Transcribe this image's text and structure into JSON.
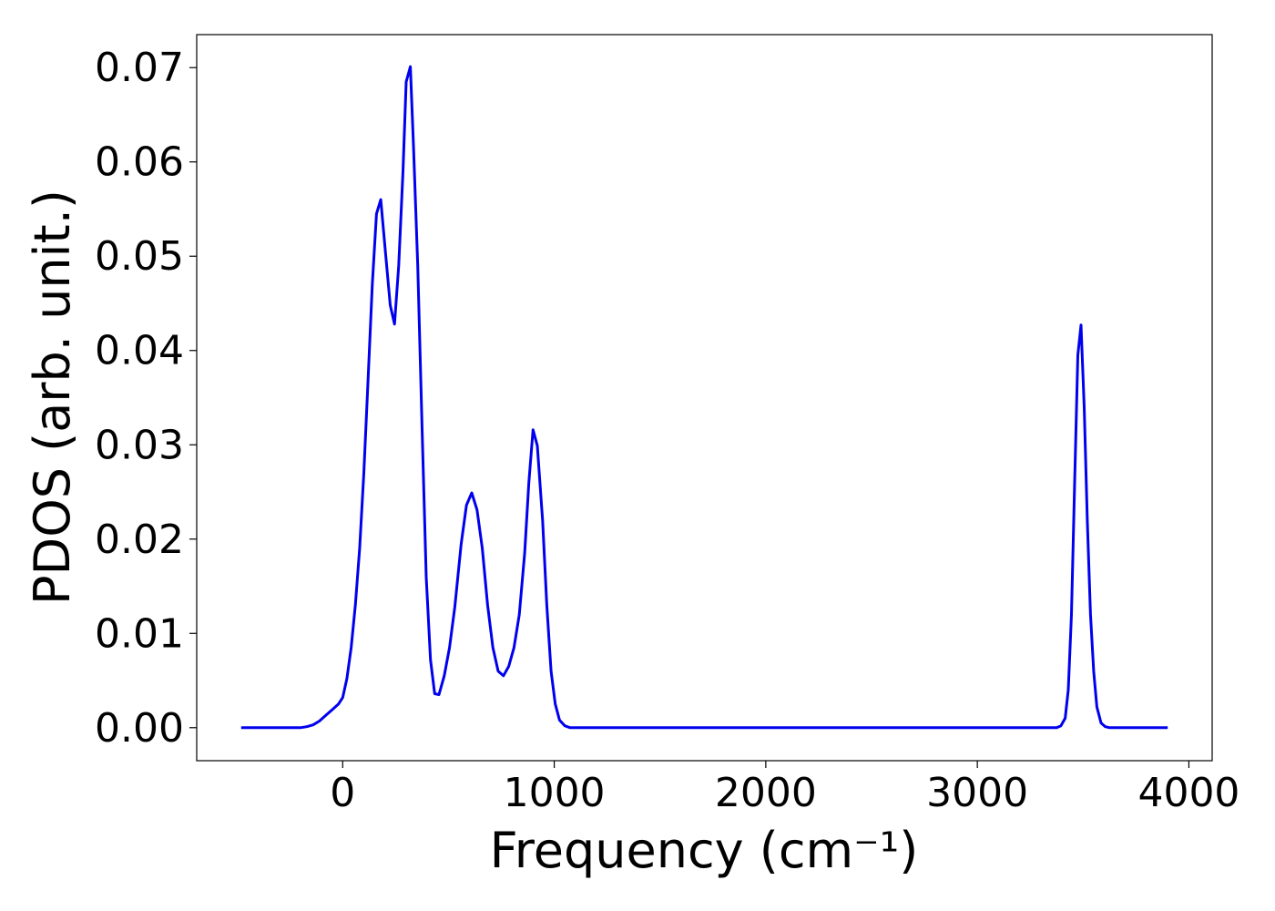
{
  "chart_data": {
    "type": "line",
    "xlabel": "Frequency (cm⁻¹)",
    "ylabel": "PDOS (arb. unit.)",
    "xlim": [
      -690,
      4110
    ],
    "ylim": [
      -0.0035,
      0.0735
    ],
    "xticks": [
      {
        "value": 0,
        "label": "0"
      },
      {
        "value": 1000,
        "label": "1000"
      },
      {
        "value": 2000,
        "label": "2000"
      },
      {
        "value": 3000,
        "label": "3000"
      },
      {
        "value": 4000,
        "label": "4000"
      }
    ],
    "yticks": [
      {
        "value": 0.0,
        "label": "0.00"
      },
      {
        "value": 0.01,
        "label": "0.01"
      },
      {
        "value": 0.02,
        "label": "0.02"
      },
      {
        "value": 0.03,
        "label": "0.03"
      },
      {
        "value": 0.04,
        "label": "0.04"
      },
      {
        "value": 0.05,
        "label": "0.05"
      },
      {
        "value": 0.06,
        "label": "0.06"
      },
      {
        "value": 0.07,
        "label": "0.07"
      }
    ],
    "grid": false,
    "legend": "none",
    "series": [
      {
        "color": "#0000ee",
        "x": [
          -480,
          -200,
          -170,
          -140,
          -110,
          -80,
          -50,
          -20,
          0,
          20,
          40,
          60,
          80,
          100,
          120,
          140,
          160,
          180,
          200,
          225,
          245,
          265,
          285,
          300,
          320,
          335,
          355,
          375,
          395,
          415,
          435,
          455,
          480,
          505,
          530,
          560,
          585,
          610,
          635,
          660,
          685,
          710,
          735,
          760,
          785,
          810,
          835,
          860,
          880,
          900,
          920,
          945,
          965,
          985,
          1005,
          1025,
          1050,
          1075,
          1100,
          1150,
          1300,
          2000,
          3000,
          3375,
          3395,
          3415,
          3430,
          3445,
          3460,
          3475,
          3490,
          3505,
          3520,
          3535,
          3550,
          3565,
          3585,
          3605,
          3625,
          3645,
          3670,
          3700,
          3900
        ],
        "y": [
          0.0,
          0.0,
          0.0001,
          0.0003,
          0.0007,
          0.0013,
          0.0019,
          0.0025,
          0.0032,
          0.0052,
          0.0085,
          0.013,
          0.019,
          0.027,
          0.037,
          0.047,
          0.0545,
          0.056,
          0.051,
          0.0448,
          0.0428,
          0.049,
          0.059,
          0.0685,
          0.0701,
          0.0615,
          0.049,
          0.032,
          0.016,
          0.0072,
          0.0036,
          0.0035,
          0.0055,
          0.0085,
          0.0128,
          0.0195,
          0.0236,
          0.0249,
          0.0231,
          0.019,
          0.013,
          0.0085,
          0.006,
          0.0055,
          0.0065,
          0.0085,
          0.012,
          0.0185,
          0.026,
          0.0316,
          0.0299,
          0.022,
          0.013,
          0.006,
          0.0025,
          0.0008,
          0.0002,
          0.0,
          0.0,
          0.0,
          0.0,
          0.0,
          0.0,
          0.0,
          0.0002,
          0.001,
          0.004,
          0.012,
          0.026,
          0.0395,
          0.0427,
          0.034,
          0.022,
          0.012,
          0.006,
          0.0022,
          0.0005,
          0.0001,
          0.0,
          0.0,
          0.0,
          0.0,
          0.0
        ]
      }
    ]
  }
}
